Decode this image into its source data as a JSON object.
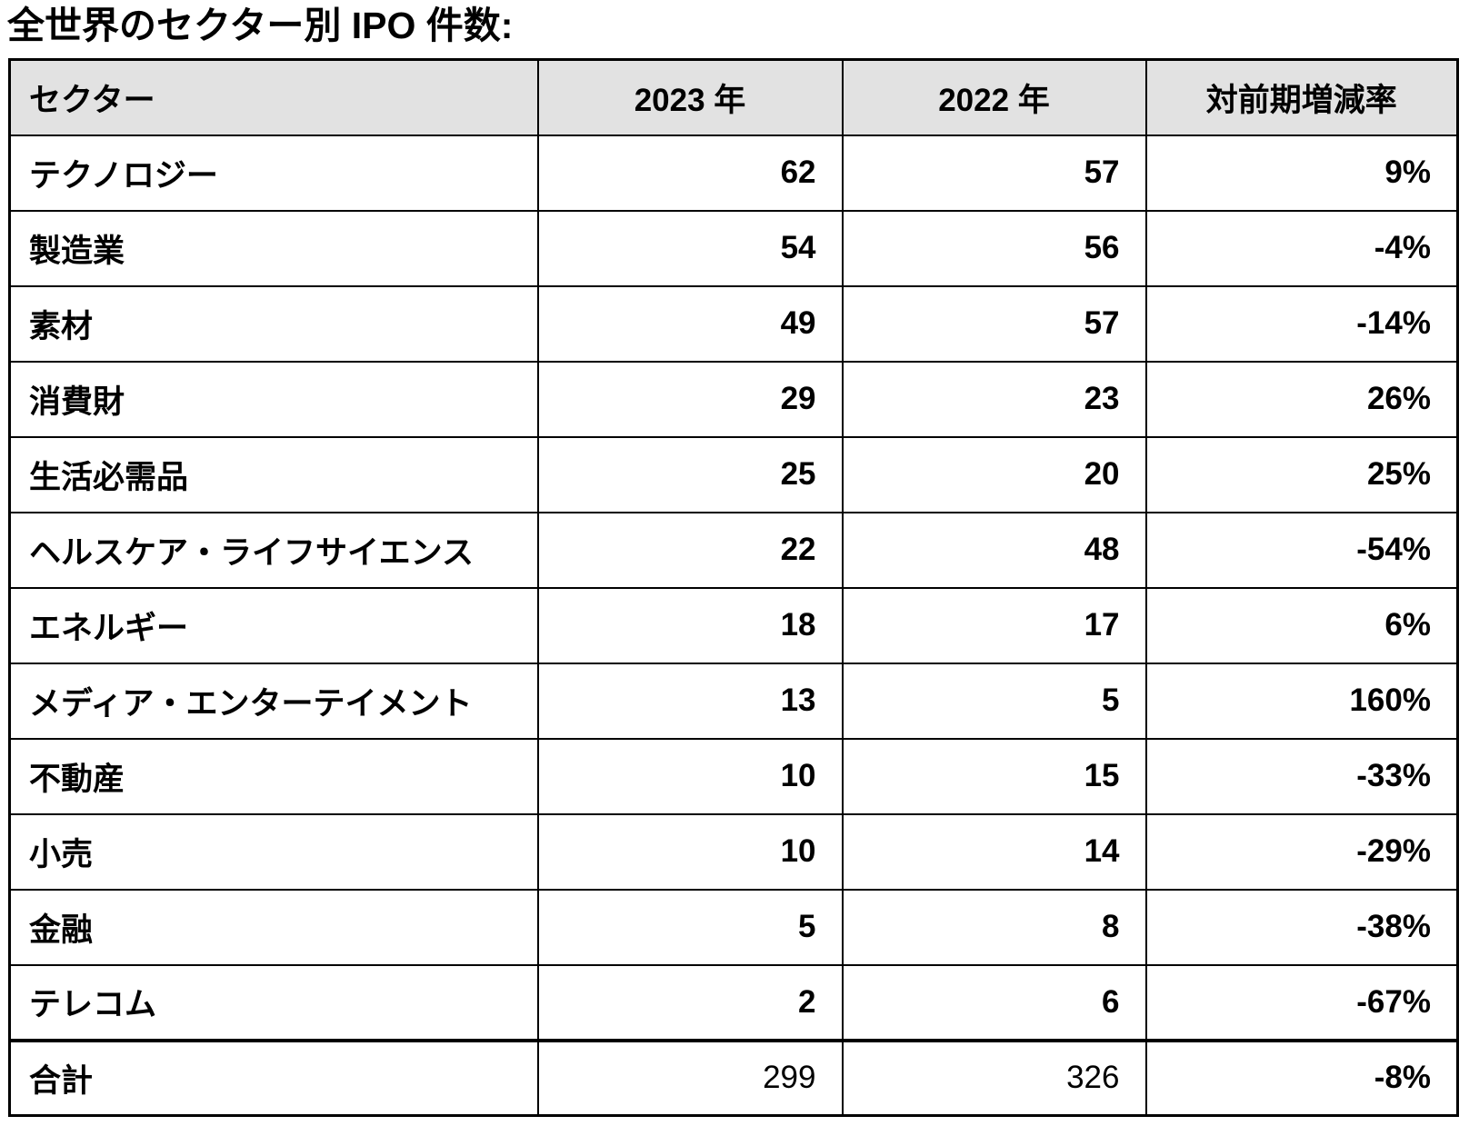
{
  "title": "全世界のセクター別 IPO 件数:",
  "table": {
    "columns": [
      "セクター",
      "2023 年",
      "2022 年",
      "対前期増減率"
    ],
    "rows": [
      {
        "sector": "テクノロジー",
        "y2023": "62",
        "y2022": "57",
        "change": "9%",
        "is_total": false
      },
      {
        "sector": "製造業",
        "y2023": "54",
        "y2022": "56",
        "change": "-4%",
        "is_total": false
      },
      {
        "sector": "素材",
        "y2023": "49",
        "y2022": "57",
        "change": "-14%",
        "is_total": false
      },
      {
        "sector": "消費財",
        "y2023": "29",
        "y2022": "23",
        "change": "26%",
        "is_total": false
      },
      {
        "sector": "生活必需品",
        "y2023": "25",
        "y2022": "20",
        "change": "25%",
        "is_total": false
      },
      {
        "sector": "ヘルスケア・ライフサイエンス",
        "y2023": "22",
        "y2022": "48",
        "change": "-54%",
        "is_total": false
      },
      {
        "sector": "エネルギー",
        "y2023": "18",
        "y2022": "17",
        "change": "6%",
        "is_total": false
      },
      {
        "sector": "メディア・エンターテイメント",
        "y2023": "13",
        "y2022": "5",
        "change": "160%",
        "is_total": false
      },
      {
        "sector": "不動産",
        "y2023": "10",
        "y2022": "15",
        "change": "-33%",
        "is_total": false
      },
      {
        "sector": "小売",
        "y2023": "10",
        "y2022": "14",
        "change": "-29%",
        "is_total": false
      },
      {
        "sector": "金融",
        "y2023": "5",
        "y2022": "8",
        "change": "-38%",
        "is_total": false
      },
      {
        "sector": "テレコム",
        "y2023": "2",
        "y2022": "6",
        "change": "-67%",
        "is_total": false
      },
      {
        "sector": "合計",
        "y2023": "299",
        "y2022": "326",
        "change": "-8%",
        "is_total": true
      }
    ]
  },
  "chart_data": {
    "type": "table",
    "title": "全世界のセクター別 IPO 件数",
    "columns": [
      "セクター",
      "2023 年",
      "2022 年",
      "対前期増減率"
    ],
    "categories": [
      "テクノロジー",
      "製造業",
      "素材",
      "消費財",
      "生活必需品",
      "ヘルスケア・ライフサイエンス",
      "エネルギー",
      "メディア・エンターテイメント",
      "不動産",
      "小売",
      "金融",
      "テレコム",
      "合計"
    ],
    "series": [
      {
        "name": "2023 年",
        "values": [
          62,
          54,
          49,
          29,
          25,
          22,
          18,
          13,
          10,
          10,
          5,
          2,
          299
        ]
      },
      {
        "name": "2022 年",
        "values": [
          57,
          56,
          57,
          23,
          20,
          48,
          17,
          5,
          15,
          14,
          8,
          6,
          326
        ]
      },
      {
        "name": "対前期増減率",
        "values": [
          "9%",
          "-4%",
          "-14%",
          "26%",
          "25%",
          "-54%",
          "6%",
          "160%",
          "-33%",
          "-29%",
          "-38%",
          "-67%",
          "-8%"
        ]
      }
    ]
  }
}
